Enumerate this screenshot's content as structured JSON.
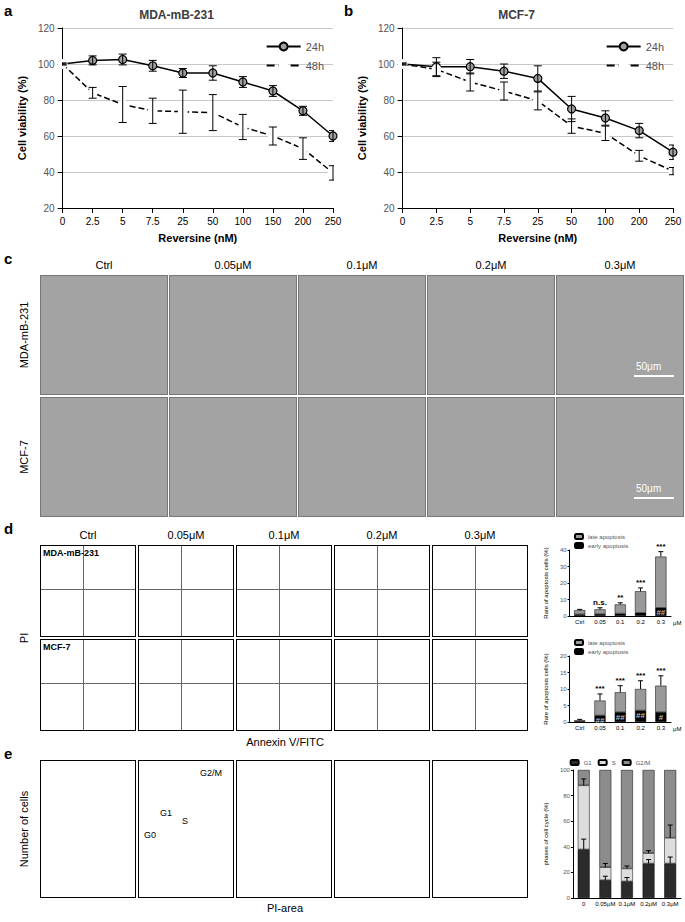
{
  "chart_data": [
    {
      "type": "line",
      "title": "MDA-mB-231",
      "xlabel": "Reversine (nM)",
      "ylabel": "Cell viability (%)",
      "categories": [
        "0",
        "2.5",
        "5",
        "7.5",
        "25",
        "50",
        "100",
        "150",
        "200",
        "250"
      ],
      "series": [
        {
          "name": "24h",
          "color": "#000000",
          "marker": "circle",
          "line_style": "solid",
          "values": [
            100,
            102,
            102.5,
            99,
            95,
            95,
            90,
            85,
            74,
            60
          ],
          "errors": [
            0.5,
            2.5,
            3,
            3,
            2.5,
            4,
            3,
            3,
            2.5,
            3
          ]
        },
        {
          "name": "48h",
          "color": "#000000",
          "marker": "emptyCircle",
          "line_style": "dashed",
          "values": [
            100,
            84,
            77.5,
            74,
            73.5,
            73,
            65,
            60,
            53,
            39.5
          ],
          "errors": [
            0.5,
            3,
            10,
            7,
            12,
            10,
            7,
            5,
            6,
            4
          ]
        }
      ],
      "ylim": [
        20,
        120
      ],
      "yticks": [
        20,
        40,
        60,
        80,
        100,
        120
      ],
      "grid": true,
      "legend": "upper right"
    },
    {
      "type": "line",
      "title": "MCF-7",
      "xlabel": "Reversine (nM)",
      "ylabel": "Cell viability (%)",
      "categories": [
        "0",
        "2.5",
        "5",
        "7.5",
        "25",
        "50",
        "100",
        "200",
        "250"
      ],
      "series": [
        {
          "name": "24h",
          "color": "#000000",
          "marker": "circle",
          "line_style": "solid",
          "values": [
            100,
            98.5,
            98.5,
            96,
            92,
            75,
            70,
            63,
            51
          ],
          "errors": [
            0.5,
            5,
            4,
            4,
            7,
            7,
            4,
            4,
            4
          ]
        },
        {
          "name": "48h",
          "color": "#000000",
          "marker": "emptyCircle",
          "line_style": "dashed",
          "values": [
            100,
            97,
            90,
            85,
            79.5,
            65.5,
            61.5,
            49,
            40.5
          ],
          "errors": [
            0.5,
            4,
            5,
            5,
            5,
            4,
            4,
            3,
            2
          ]
        }
      ],
      "ylim": [
        20,
        120
      ],
      "yticks": [
        20,
        40,
        60,
        80,
        100,
        120
      ],
      "grid": true,
      "legend": "upper right"
    },
    {
      "type": "bar",
      "stacked": true,
      "xlabel": "μM",
      "ylabel": "Rate of apoptosis cells (%)",
      "categories": [
        "Ctrl",
        "0.05",
        "0.1",
        "0.2",
        "0.3"
      ],
      "series": [
        {
          "name": "early apoptosis",
          "color": "#000000",
          "values": [
            1,
            1.2,
            1.5,
            2,
            5
          ]
        },
        {
          "name": "late apoptosis",
          "color": "#999999",
          "values": [
            2.5,
            2.8,
            5.5,
            13,
            31
          ],
          "errors": [
            0.5,
            1,
            1,
            2,
            3
          ]
        }
      ],
      "annotations": [
        {
          "category": "0.05",
          "series": "late apoptosis",
          "text": "n.s."
        },
        {
          "category": "0.1",
          "series": "late apoptosis",
          "text": "**"
        },
        {
          "category": "0.2",
          "series": "late apoptosis",
          "text": "***"
        },
        {
          "category": "0.3",
          "series": "late apoptosis",
          "text": "***"
        },
        {
          "category": "0.3",
          "series": "early apoptosis",
          "text": "##"
        }
      ],
      "ylim": [
        0,
        40
      ],
      "yticks": [
        0,
        10,
        20,
        30,
        40
      ],
      "grid": false,
      "legend": "upper left"
    },
    {
      "type": "bar",
      "stacked": true,
      "xlabel": "μM",
      "ylabel": "Rate of apoptosis cells (%)",
      "categories": [
        "Ctrl",
        "0.05",
        "0.1",
        "0.2",
        "0.3"
      ],
      "series": [
        {
          "name": "early apoptosis",
          "color": "#000000",
          "values": [
            0.2,
            2,
            3,
            3.5,
            3
          ]
        },
        {
          "name": "late apoptosis",
          "color": "#999999",
          "values": [
            0.3,
            4.5,
            6,
            6.5,
            8
          ],
          "errors": [
            0.3,
            2,
            2,
            2.5,
            3
          ]
        }
      ],
      "annotations": [
        {
          "category": "0.05",
          "series": "late apoptosis",
          "text": "***"
        },
        {
          "category": "0.1",
          "series": "late apoptosis",
          "text": "***"
        },
        {
          "category": "0.2",
          "series": "late apoptosis",
          "text": "***"
        },
        {
          "category": "0.3",
          "series": "late apoptosis",
          "text": "***"
        },
        {
          "category": "0.05",
          "series": "early apoptosis",
          "text": "##"
        },
        {
          "category": "0.1",
          "series": "early apoptosis",
          "text": "##"
        },
        {
          "category": "0.2",
          "series": "early apoptosis",
          "text": "##"
        },
        {
          "category": "0.3",
          "series": "early apoptosis",
          "text": "#"
        }
      ],
      "ylim": [
        0,
        20
      ],
      "yticks": [
        0,
        5,
        10,
        15,
        20
      ],
      "grid": false,
      "legend": "upper left"
    },
    {
      "type": "bar",
      "stacked": true,
      "ylabel": "phases of cell cycle (%)",
      "categories": [
        "0",
        "0.05μM",
        "0.1μM",
        "0.2μM",
        "0.3μM"
      ],
      "series": [
        {
          "name": "G1",
          "color": "#2b2b2b",
          "values": [
            38,
            14,
            13,
            27,
            27
          ],
          "errors": [
            8,
            3,
            3,
            3,
            5
          ]
        },
        {
          "name": "S",
          "color": "#dddddd",
          "values": [
            50,
            10,
            10,
            8,
            20
          ],
          "errors": [
            5,
            3,
            2,
            2,
            10
          ]
        },
        {
          "name": "G2/M",
          "color": "#8c8c8c",
          "values": [
            12,
            76,
            77,
            65,
            53
          ],
          "errors": [
            2,
            2,
            2,
            2,
            2
          ]
        }
      ],
      "ylim": [
        0,
        100
      ],
      "yticks": [
        0,
        20,
        40,
        60,
        80,
        100
      ],
      "grid": false,
      "legend": "top"
    }
  ],
  "figure": {
    "panel_labels": [
      "a",
      "b",
      "c",
      "d",
      "e"
    ],
    "micrographs": {
      "columns": [
        "Ctrl",
        "0.05μM",
        "0.1μM",
        "0.2μM",
        "0.3μM"
      ],
      "rows": [
        "MDA-mB-231",
        "MCF-7"
      ],
      "scale_bar": "50μm"
    },
    "flow_cytometry": {
      "columns": [
        "Ctrl",
        "0.05μM",
        "0.1μM",
        "0.2μM",
        "0.3μM"
      ],
      "rows": [
        "MDA-mB-231",
        "MCF-7"
      ],
      "xlabel": "Annexin V/FITC",
      "ylabel": "PI"
    },
    "cell_cycle_histograms": {
      "xlabel": "PI-area",
      "ylabel": "Number of cells",
      "phase_labels": [
        "G0",
        "G1",
        "S",
        "G2/M"
      ]
    }
  }
}
